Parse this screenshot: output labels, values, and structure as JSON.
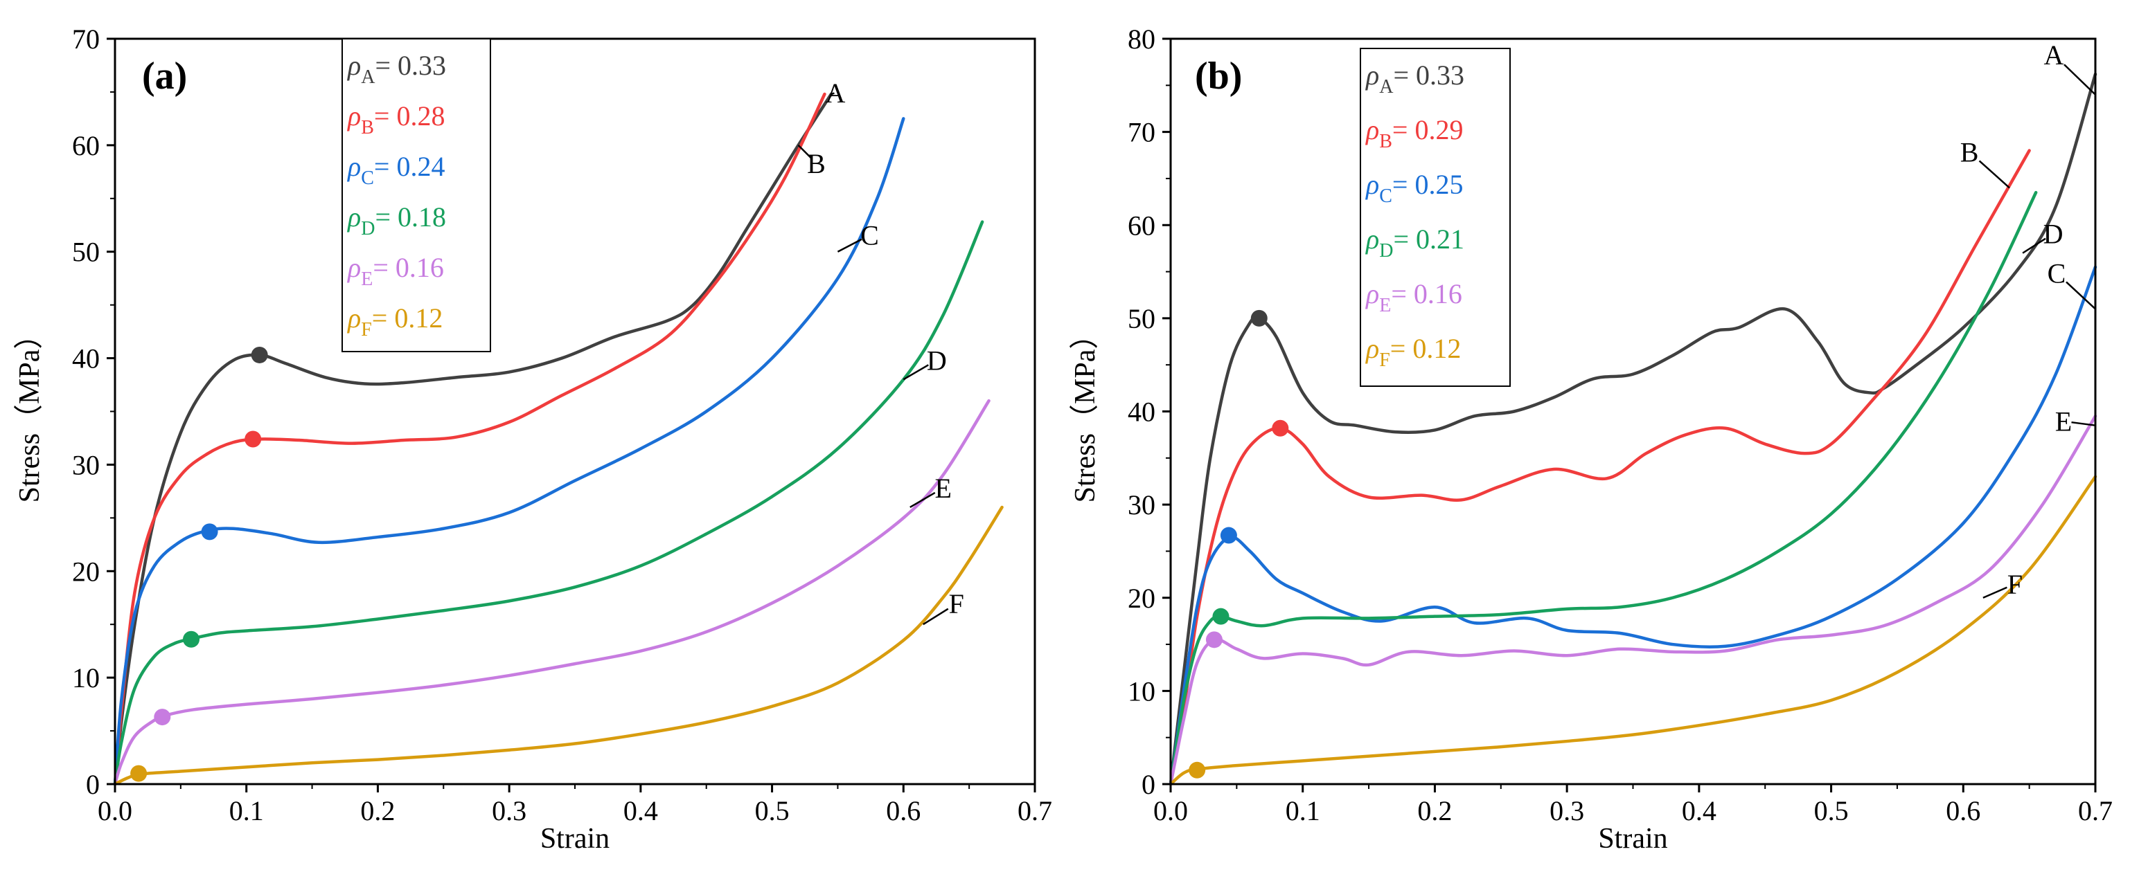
{
  "chart_data": [
    {
      "type": "line",
      "panel_label": "(a)",
      "xlabel": "Strain",
      "ylabel": "Stress（MPa）",
      "xlim": [
        0,
        0.7
      ],
      "ylim": [
        0,
        70
      ],
      "xticks": [
        "0.0",
        "0.1",
        "0.2",
        "0.3",
        "0.4",
        "0.5",
        "0.6",
        "0.7"
      ],
      "yticks": [
        "0",
        "10",
        "20",
        "30",
        "40",
        "50",
        "60",
        "70"
      ],
      "legend_position": "top-center",
      "series": [
        {
          "name": "A",
          "rho_symbol": "ρ",
          "rho_sub": "A",
          "rho_value": "= 0.33",
          "color": "#404040",
          "x": [
            0.0,
            0.005,
            0.015,
            0.03,
            0.05,
            0.07,
            0.09,
            0.11,
            0.13,
            0.16,
            0.19,
            0.22,
            0.26,
            0.3,
            0.34,
            0.38,
            0.42,
            0.44,
            0.46,
            0.48,
            0.5,
            0.52,
            0.545
          ],
          "y": [
            0,
            6,
            15,
            25,
            33,
            37.5,
            39.8,
            40.3,
            39.5,
            38.2,
            37.6,
            37.7,
            38.2,
            38.7,
            40.0,
            42.0,
            43.5,
            45.0,
            48.0,
            52.0,
            56.0,
            60.0,
            64.8
          ],
          "marker": {
            "x": 0.11,
            "y": 40.3
          },
          "label_at": {
            "x": 0.545,
            "y": 64.8
          }
        },
        {
          "name": "B",
          "rho_symbol": "ρ",
          "rho_sub": "B",
          "rho_value": "= 0.28",
          "color": "#f03c3c",
          "x": [
            0.0,
            0.005,
            0.015,
            0.03,
            0.05,
            0.07,
            0.09,
            0.11,
            0.14,
            0.18,
            0.22,
            0.26,
            0.3,
            0.34,
            0.38,
            0.42,
            0.45,
            0.48,
            0.51,
            0.54
          ],
          "y": [
            0,
            7,
            18,
            25,
            29,
            31,
            32.1,
            32.4,
            32.3,
            32.0,
            32.3,
            32.6,
            34.0,
            36.5,
            39.0,
            42.0,
            46.0,
            51.0,
            57.0,
            64.8
          ],
          "marker": {
            "x": 0.105,
            "y": 32.4
          },
          "label_at": {
            "x": 0.52,
            "y": 60.0
          }
        },
        {
          "name": "C",
          "rho_symbol": "ρ",
          "rho_sub": "C",
          "rho_value": "= 0.24",
          "color": "#1a6fd6",
          "x": [
            0.0,
            0.005,
            0.015,
            0.03,
            0.05,
            0.07,
            0.09,
            0.12,
            0.155,
            0.2,
            0.25,
            0.3,
            0.35,
            0.4,
            0.45,
            0.5,
            0.55,
            0.58,
            0.6
          ],
          "y": [
            0,
            8,
            16,
            20.5,
            22.8,
            23.8,
            24.0,
            23.5,
            22.7,
            23.2,
            24.0,
            25.5,
            28.5,
            31.5,
            35.0,
            40.0,
            47.5,
            55.0,
            62.5
          ],
          "marker": {
            "x": 0.072,
            "y": 23.7
          },
          "label_at": {
            "x": 0.55,
            "y": 50.0
          }
        },
        {
          "name": "D",
          "rho_symbol": "ρ",
          "rho_sub": "D",
          "rho_value": "= 0.18",
          "color": "#17a05d",
          "x": [
            0.0,
            0.005,
            0.015,
            0.03,
            0.045,
            0.06,
            0.08,
            0.1,
            0.15,
            0.2,
            0.25,
            0.3,
            0.35,
            0.4,
            0.45,
            0.5,
            0.55,
            0.6,
            0.63,
            0.66
          ],
          "y": [
            0,
            4,
            9,
            12,
            13.2,
            13.7,
            14.2,
            14.4,
            14.8,
            15.5,
            16.3,
            17.2,
            18.5,
            20.5,
            23.5,
            27.0,
            31.5,
            38.0,
            44.0,
            52.8
          ],
          "marker": {
            "x": 0.058,
            "y": 13.6
          },
          "label_at": {
            "x": 0.6,
            "y": 38.0
          }
        },
        {
          "name": "E",
          "rho_symbol": "ρ",
          "rho_sub": "E",
          "rho_value": "= 0.16",
          "color": "#c77ce0",
          "x": [
            0.0,
            0.005,
            0.015,
            0.03,
            0.04,
            0.06,
            0.1,
            0.15,
            0.2,
            0.25,
            0.3,
            0.35,
            0.4,
            0.45,
            0.5,
            0.55,
            0.6,
            0.63,
            0.665
          ],
          "y": [
            0,
            2,
            4.5,
            6,
            6.5,
            7.0,
            7.5,
            8.0,
            8.6,
            9.3,
            10.2,
            11.3,
            12.5,
            14.3,
            17.0,
            20.5,
            25.0,
            29.0,
            36.0
          ],
          "marker": {
            "x": 0.036,
            "y": 6.3
          },
          "label_at": {
            "x": 0.605,
            "y": 26.0
          }
        },
        {
          "name": "F",
          "rho_symbol": "ρ",
          "rho_sub": "F",
          "rho_value": "= 0.12",
          "color": "#d89c0e",
          "x": [
            0.0,
            0.01,
            0.02,
            0.05,
            0.1,
            0.15,
            0.2,
            0.25,
            0.3,
            0.35,
            0.4,
            0.45,
            0.5,
            0.55,
            0.6,
            0.63,
            0.65,
            0.675
          ],
          "y": [
            0,
            0.6,
            0.95,
            1.2,
            1.6,
            2.0,
            2.3,
            2.7,
            3.2,
            3.8,
            4.7,
            5.8,
            7.3,
            9.5,
            13.5,
            17.5,
            21.0,
            26.0
          ],
          "marker": {
            "x": 0.018,
            "y": 1.0
          },
          "label_at": {
            "x": 0.615,
            "y": 15.0
          }
        }
      ]
    },
    {
      "type": "line",
      "panel_label": "(b)",
      "xlabel": "Strain",
      "ylabel": "Stress（MPa）",
      "xlim": [
        0,
        0.7
      ],
      "ylim": [
        0,
        80
      ],
      "xticks": [
        "0.0",
        "0.1",
        "0.2",
        "0.3",
        "0.4",
        "0.5",
        "0.6",
        "0.7"
      ],
      "yticks": [
        "0",
        "10",
        "20",
        "30",
        "40",
        "50",
        "60",
        "70",
        "80"
      ],
      "legend_position": "top-left",
      "series": [
        {
          "name": "A",
          "rho_symbol": "ρ",
          "rho_sub": "A",
          "rho_value": "= 0.33",
          "color": "#404040",
          "x": [
            0.0,
            0.01,
            0.02,
            0.03,
            0.045,
            0.06,
            0.067,
            0.08,
            0.1,
            0.12,
            0.14,
            0.17,
            0.2,
            0.23,
            0.26,
            0.29,
            0.32,
            0.35,
            0.38,
            0.41,
            0.43,
            0.465,
            0.49,
            0.51,
            0.53,
            0.54,
            0.56,
            0.6,
            0.64,
            0.67,
            0.7
          ],
          "y": [
            0,
            12,
            24,
            35,
            45,
            49.5,
            50.0,
            48.0,
            42.0,
            39.0,
            38.5,
            37.8,
            38.0,
            39.5,
            40.0,
            41.5,
            43.5,
            44.0,
            46.0,
            48.5,
            49.0,
            51.0,
            47.5,
            43.0,
            42.0,
            42.5,
            44.5,
            49.0,
            55.0,
            62.0,
            76.2
          ],
          "marker": {
            "x": 0.067,
            "y": 50.0
          },
          "label_at": {
            "x": 0.7,
            "y": 74.0
          }
        },
        {
          "name": "B",
          "rho_symbol": "ρ",
          "rho_sub": "B",
          "rho_value": "= 0.29",
          "color": "#f03c3c",
          "x": [
            0.0,
            0.01,
            0.02,
            0.035,
            0.05,
            0.065,
            0.083,
            0.1,
            0.12,
            0.15,
            0.19,
            0.22,
            0.25,
            0.29,
            0.33,
            0.36,
            0.39,
            0.42,
            0.45,
            0.48,
            0.5,
            0.53,
            0.57,
            0.61,
            0.65
          ],
          "y": [
            0,
            8,
            18,
            28,
            34,
            37,
            38.2,
            36.5,
            33.0,
            30.8,
            31.0,
            30.5,
            32.0,
            33.8,
            32.8,
            35.5,
            37.5,
            38.2,
            36.5,
            35.5,
            36.5,
            41.0,
            48.0,
            58.0,
            68.0
          ],
          "marker": {
            "x": 0.083,
            "y": 38.2
          },
          "label_at": {
            "x": 0.635,
            "y": 64.0
          }
        },
        {
          "name": "C",
          "rho_symbol": "ρ",
          "rho_sub": "C",
          "rho_value": "= 0.25",
          "color": "#1a6fd6",
          "x": [
            0.0,
            0.01,
            0.02,
            0.03,
            0.045,
            0.06,
            0.08,
            0.1,
            0.13,
            0.16,
            0.2,
            0.23,
            0.27,
            0.3,
            0.34,
            0.38,
            0.42,
            0.46,
            0.5,
            0.55,
            0.6,
            0.64,
            0.67,
            0.7
          ],
          "y": [
            0,
            10,
            19,
            24,
            26.5,
            25.0,
            22.0,
            20.5,
            18.5,
            17.5,
            19.0,
            17.3,
            17.8,
            16.5,
            16.2,
            15.0,
            14.8,
            16.0,
            18.0,
            22.0,
            28.0,
            36.0,
            44.0,
            55.5
          ],
          "marker": {
            "x": 0.044,
            "y": 26.7
          },
          "label_at": {
            "x": 0.7,
            "y": 51.0
          }
        },
        {
          "name": "D",
          "rho_symbol": "ρ",
          "rho_sub": "D",
          "rho_value": "= 0.21",
          "color": "#17a05d",
          "x": [
            0.0,
            0.01,
            0.02,
            0.03,
            0.038,
            0.05,
            0.07,
            0.1,
            0.15,
            0.2,
            0.25,
            0.3,
            0.34,
            0.38,
            0.42,
            0.46,
            0.5,
            0.54,
            0.58,
            0.62,
            0.655
          ],
          "y": [
            0,
            9,
            15,
            17.5,
            18.0,
            17.5,
            17.0,
            17.8,
            17.8,
            18.0,
            18.2,
            18.8,
            19.0,
            20.0,
            22.0,
            25.0,
            29.0,
            35.0,
            43.0,
            53.0,
            63.5
          ],
          "marker": {
            "x": 0.038,
            "y": 18.0
          },
          "label_at": {
            "x": 0.645,
            "y": 57.0
          }
        },
        {
          "name": "E",
          "rho_symbol": "ρ",
          "rho_sub": "E",
          "rho_value": "= 0.16",
          "color": "#c77ce0",
          "x": [
            0.0,
            0.01,
            0.02,
            0.033,
            0.05,
            0.07,
            0.1,
            0.13,
            0.15,
            0.18,
            0.22,
            0.26,
            0.3,
            0.34,
            0.38,
            0.42,
            0.46,
            0.5,
            0.54,
            0.58,
            0.62,
            0.66,
            0.7
          ],
          "y": [
            0,
            7,
            13,
            15.5,
            14.5,
            13.5,
            14.0,
            13.5,
            12.8,
            14.2,
            13.8,
            14.3,
            13.8,
            14.5,
            14.2,
            14.3,
            15.5,
            16.0,
            17.0,
            19.5,
            23.0,
            30.0,
            39.5
          ],
          "marker": {
            "x": 0.033,
            "y": 15.5
          },
          "label_at": {
            "x": 0.7,
            "y": 38.5
          }
        },
        {
          "name": "F",
          "rho_symbol": "ρ",
          "rho_sub": "F",
          "rho_value": "= 0.12",
          "color": "#d89c0e",
          "x": [
            0.0,
            0.01,
            0.02,
            0.05,
            0.1,
            0.15,
            0.2,
            0.25,
            0.3,
            0.35,
            0.4,
            0.45,
            0.5,
            0.55,
            0.6,
            0.65,
            0.7
          ],
          "y": [
            0,
            1.2,
            1.6,
            2.0,
            2.5,
            3.0,
            3.5,
            4.0,
            4.6,
            5.3,
            6.3,
            7.5,
            9.0,
            12.0,
            16.5,
            23.0,
            33.0
          ],
          "marker": {
            "x": 0.02,
            "y": 1.5
          },
          "label_at": {
            "x": 0.615,
            "y": 20.0
          }
        }
      ]
    }
  ]
}
